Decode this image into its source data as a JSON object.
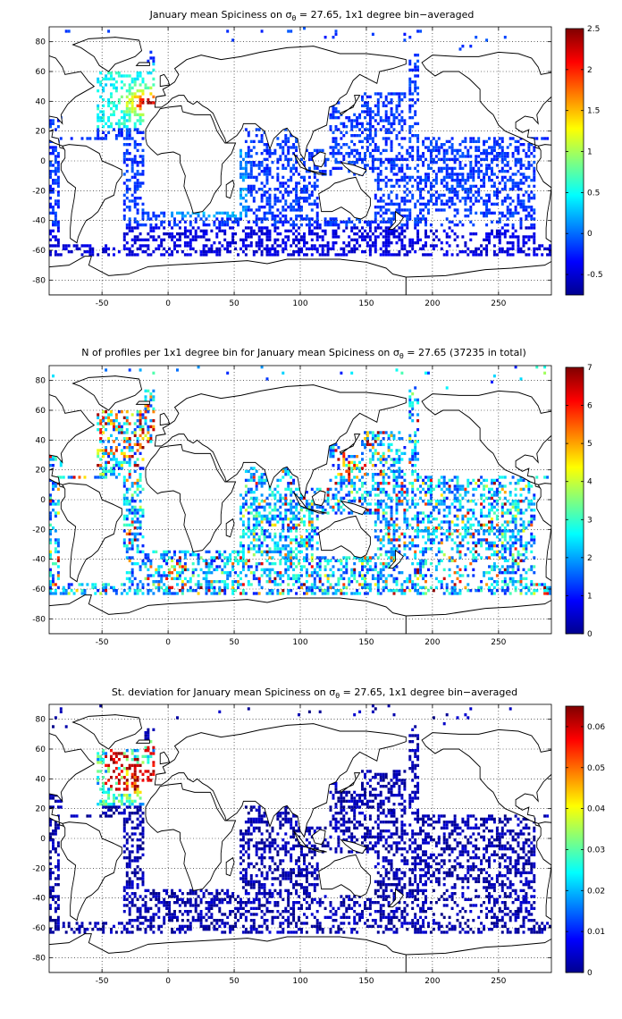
{
  "panels": [
    {
      "id": "mean",
      "title_parts": [
        "January mean Spiciness on ",
        "σ",
        "θ",
        " = 27.65, 1x1 degree bin−averaged"
      ],
      "colorbar": {
        "min": -0.75,
        "max": 2.5,
        "ticks": [
          "-0.5",
          "0",
          "0.5",
          "1",
          "1.5",
          "2",
          "2.5"
        ],
        "tick_values": [
          -0.5,
          0,
          0.5,
          1,
          1.5,
          2,
          2.5
        ]
      }
    },
    {
      "id": "count",
      "title_parts": [
        "N of profiles per 1x1 degree bin for January mean Spiciness on ",
        "σ",
        "θ",
        " = 27.65 (37235 in total)"
      ],
      "colorbar": {
        "min": 0,
        "max": 7,
        "ticks": [
          "0",
          "1",
          "2",
          "3",
          "4",
          "5",
          "6",
          "7"
        ],
        "tick_values": [
          0,
          1,
          2,
          3,
          4,
          5,
          6,
          7
        ]
      }
    },
    {
      "id": "std",
      "title_parts": [
        "St. deviation for January mean Spiciness on ",
        "σ",
        "θ",
        " = 27.65, 1x1 degree bin−averaged"
      ],
      "colorbar": {
        "min": 0,
        "max": 0.065,
        "ticks": [
          "0",
          "0.01",
          "0.02",
          "0.03",
          "0.04",
          "0.05",
          "0.06"
        ],
        "tick_values": [
          0,
          0.01,
          0.02,
          0.03,
          0.04,
          0.05,
          0.06
        ]
      }
    }
  ],
  "map_axes": {
    "lon_range": [
      -90,
      290
    ],
    "lat_range": [
      -90,
      90
    ],
    "x_ticks": [
      "-50",
      "0",
      "50",
      "100",
      "150",
      "200",
      "250"
    ],
    "x_tick_values": [
      -50,
      0,
      50,
      100,
      150,
      200,
      250
    ],
    "y_ticks": [
      "80",
      "60",
      "40",
      "20",
      "0",
      "-20",
      "-40",
      "-60",
      "-80"
    ],
    "y_tick_values": [
      80,
      60,
      40,
      20,
      0,
      -20,
      -40,
      -60,
      -80
    ],
    "grid": "dotted"
  },
  "colormap": "jet"
}
